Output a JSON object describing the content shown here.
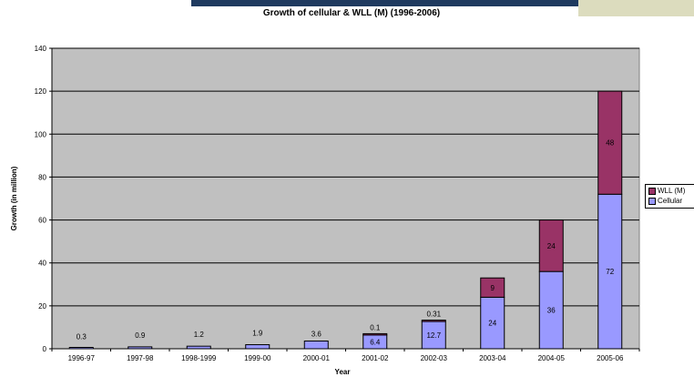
{
  "chart_data": {
    "type": "bar",
    "stacked": true,
    "title": "Growth of cellular & WLL (M) (1996-2006)",
    "xlabel": "Year",
    "ylabel": "Growth (in million)",
    "ylim": [
      0,
      140
    ],
    "yticks": [
      0,
      20,
      40,
      60,
      80,
      100,
      120,
      140
    ],
    "grid": true,
    "legend_position": "right",
    "categories": [
      "1996-97",
      "1997-98",
      "1998-1999",
      "1999-00",
      "2000-01",
      "2001-02",
      "2002-03",
      "2003-04",
      "2004-05",
      "2005-06"
    ],
    "series": [
      {
        "name": "Cellular",
        "color": "#9999ff",
        "values": [
          0.3,
          0.9,
          1.2,
          1.9,
          3.6,
          6.4,
          12.7,
          24,
          36,
          72
        ],
        "labels": [
          "0.3",
          "0.9",
          "1.2",
          "1.9",
          "3.6",
          "6.4",
          "12.7",
          "24",
          "36",
          "72"
        ]
      },
      {
        "name": "WLL (M)",
        "color": "#993366",
        "values": [
          0,
          0,
          0,
          0,
          0,
          0.1,
          0.31,
          9,
          24,
          48
        ],
        "labels": [
          "",
          "",
          "",
          "",
          "",
          "0.1",
          "0.31",
          "9",
          "24",
          "48"
        ]
      }
    ],
    "plot_background": "#c0c0c0",
    "page_accent": "#1f3a5f"
  }
}
